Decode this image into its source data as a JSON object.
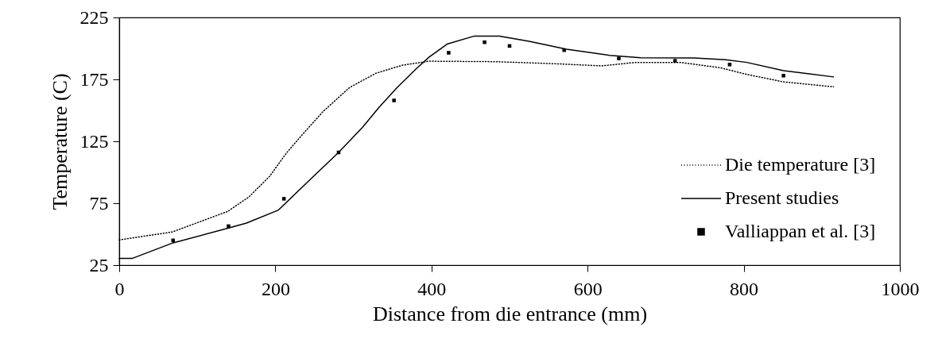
{
  "chart_data": {
    "type": "line",
    "xlabel": "Distance from die entrance (mm)",
    "ylabel": "Temperature (C)",
    "xlim": [
      0,
      1000
    ],
    "ylim": [
      25,
      225
    ],
    "xticks": [
      0,
      200,
      400,
      600,
      800,
      1000
    ],
    "yticks": [
      25,
      75,
      125,
      175,
      225
    ],
    "grid": false,
    "legend": "bottom right",
    "series": [
      {
        "name": "Die temperature [3]",
        "color": "#000000",
        "line_style": "dotted",
        "x": [
          0,
          68,
          139,
          166,
          193,
          214,
          234,
          261,
          295,
          329,
          363,
          397,
          482,
          560,
          618,
          661,
          719,
          770,
          804,
          851,
          915
        ],
        "values": [
          45.4,
          51.8,
          68.4,
          80,
          97,
          115.4,
          130,
          149,
          168.4,
          180,
          186.5,
          189.7,
          189.3,
          187.6,
          185.9,
          188.7,
          188.7,
          184.4,
          179,
          173,
          169
        ]
      },
      {
        "name": "Present studies",
        "color": "#000000",
        "line_style": "solid",
        "x": [
          0,
          17,
          69,
          140,
          163,
          204,
          241,
          281,
          312,
          333,
          356,
          380,
          397,
          420,
          455,
          487,
          525,
          573,
          628,
          668,
          736,
          777,
          804,
          851,
          915
        ],
        "values": [
          30.5,
          30.5,
          43,
          55,
          59,
          69.5,
          92,
          116,
          136.5,
          152.5,
          168.4,
          183.3,
          193,
          203.5,
          210,
          210,
          205.7,
          199.3,
          194.4,
          192.5,
          192.3,
          190.8,
          188.7,
          182,
          177
        ]
      },
      {
        "name": "Valliappan et al. [3]",
        "type": "scatter",
        "color": "#000000",
        "marker": "square",
        "x": [
          69,
          140,
          211,
          281,
          352,
          422,
          468,
          500,
          570,
          640,
          712,
          782,
          851
        ],
        "values": [
          45,
          56.5,
          78.6,
          116,
          158,
          196.5,
          205,
          202,
          198.6,
          191.9,
          190,
          187,
          178
        ]
      }
    ]
  }
}
